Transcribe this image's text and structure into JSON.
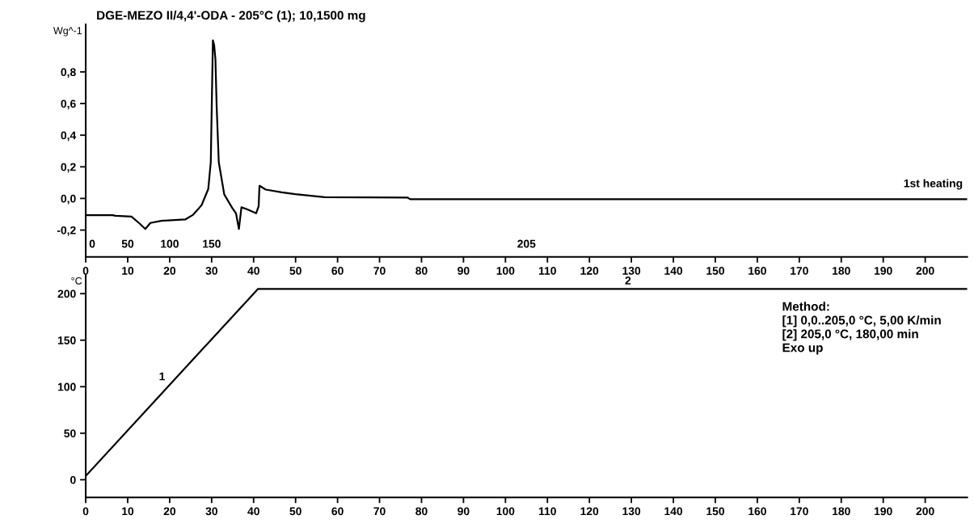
{
  "chart_data": [
    {
      "type": "line",
      "title": "DGE-MEZO II/4,4'-ODA - 205°C (1); 10,1500 mg",
      "ylabel": "Wg^-1",
      "x": [
        0,
        6.4,
        7.1,
        10.9,
        12.9,
        14.2,
        15.4,
        18.0,
        23.7,
        25.6,
        27.6,
        29.2,
        29.8,
        30.0,
        30.3,
        30.6,
        30.9,
        31.2,
        31.7,
        33.0,
        34.9,
        35.8,
        36.5,
        37.1,
        38.4,
        40.6,
        41.2,
        41.4,
        42.9,
        46.7,
        49.9,
        56.9,
        76.7,
        77.3,
        210
      ],
      "series": [
        {
          "color": "#000000",
          "values": [
            -0.106,
            -0.106,
            -0.11,
            -0.115,
            -0.16,
            -0.193,
            -0.155,
            -0.142,
            -0.133,
            -0.103,
            -0.043,
            0.06,
            0.23,
            0.54,
            1.0,
            0.97,
            0.88,
            0.58,
            0.23,
            0.026,
            -0.06,
            -0.094,
            -0.193,
            -0.056,
            -0.068,
            -0.094,
            -0.05,
            0.08,
            0.056,
            0.039,
            0.027,
            0.008,
            0.005,
            -0.005,
            -0.005
          ]
        }
      ],
      "xlim": [
        0,
        210
      ],
      "ylim": [
        -0.37,
        1.1
      ],
      "xticks": [
        0,
        10,
        20,
        30,
        40,
        50,
        60,
        70,
        80,
        90,
        100,
        110,
        120,
        130,
        140,
        150,
        160,
        170,
        180,
        190,
        200
      ],
      "yticks": [
        {
          "value": -0.2,
          "label": "-0,2"
        },
        {
          "value": 0,
          "label": "0,0"
        },
        {
          "value": 0.2,
          "label": "0,2"
        },
        {
          "value": 0.4,
          "label": "0,4"
        },
        {
          "value": 0.6,
          "label": "0,6"
        },
        {
          "value": 0.8,
          "label": "0,8"
        }
      ],
      "annotations": [
        "1st heating",
        "0",
        "50",
        "100",
        "150",
        "205"
      ],
      "grid": false,
      "legend": false,
      "marker": "none",
      "line_style": "solid"
    },
    {
      "type": "line",
      "ylabel": "°C",
      "x": [
        0,
        40,
        41,
        210
      ],
      "series": [
        {
          "color": "#000000",
          "values": [
            4,
            200,
            205,
            205
          ]
        }
      ],
      "xlim": [
        0,
        210
      ],
      "ylim": [
        -19,
        220
      ],
      "xticks": [
        0,
        10,
        20,
        30,
        40,
        50,
        60,
        70,
        80,
        90,
        100,
        110,
        120,
        130,
        140,
        150,
        160,
        170,
        180,
        190,
        200
      ],
      "yticks": [
        0,
        50,
        100,
        150,
        200
      ],
      "annotations": [
        {
          "text": "1",
          "x": 20,
          "y": 102
        },
        {
          "text": "2",
          "x": 131,
          "y": 205
        },
        "Method:",
        "[1] 0,0..205,0 °C, 5,00 K/min",
        "[2] 205,0 °C, 180,00 min",
        "Exo up"
      ],
      "grid": false,
      "legend": false,
      "marker": "none",
      "line_style": "solid"
    }
  ]
}
